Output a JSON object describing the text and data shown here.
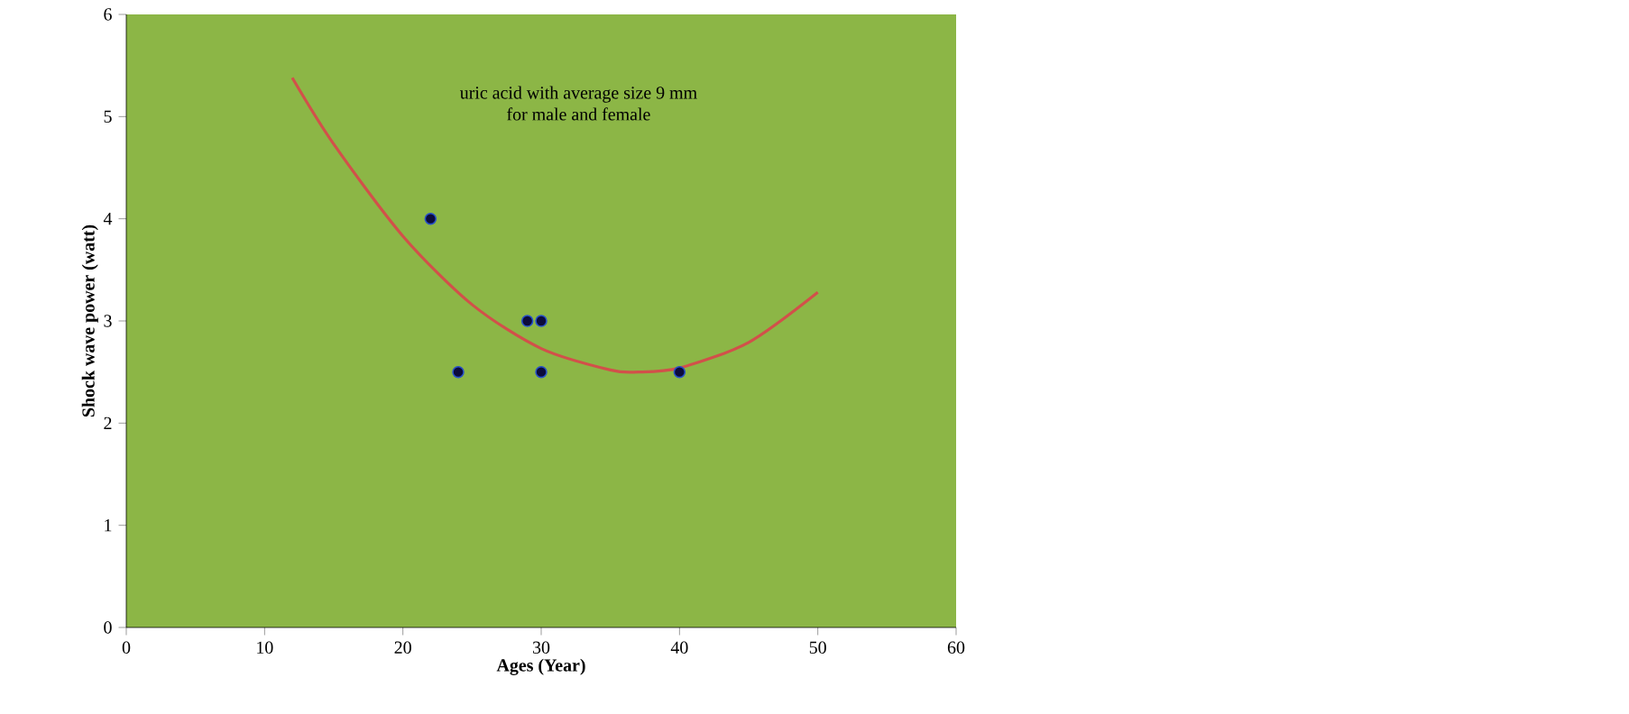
{
  "chart_data": {
    "type": "scatter",
    "xlabel": "Ages (Year)",
    "ylabel": "Shock wave power (watt)",
    "annotations": [
      "uric acid with average size 9 mm for male and female"
    ],
    "series": [
      {
        "color": "#0b0b3c",
        "marker": "circle",
        "x": [
          22,
          24,
          29,
          30,
          30,
          40
        ],
        "values": [
          4,
          2.5,
          3,
          3,
          2.5,
          2.5
        ]
      },
      {
        "type": "line",
        "color": "#d2504a",
        "marker": "none",
        "x": [
          12,
          15,
          20,
          25,
          30,
          35,
          37,
          40,
          45,
          50
        ],
        "values": [
          5.38,
          4.73,
          3.83,
          3.16,
          2.73,
          2.52,
          2.5,
          2.54,
          2.79,
          3.28
        ]
      }
    ],
    "xlim": [
      0,
      60
    ],
    "xticks": [
      0,
      10,
      20,
      30,
      40,
      50,
      60
    ],
    "ylim": [
      0,
      6
    ],
    "yticks": [
      0,
      1,
      2,
      3,
      4,
      5,
      6
    ],
    "grid": false
  }
}
